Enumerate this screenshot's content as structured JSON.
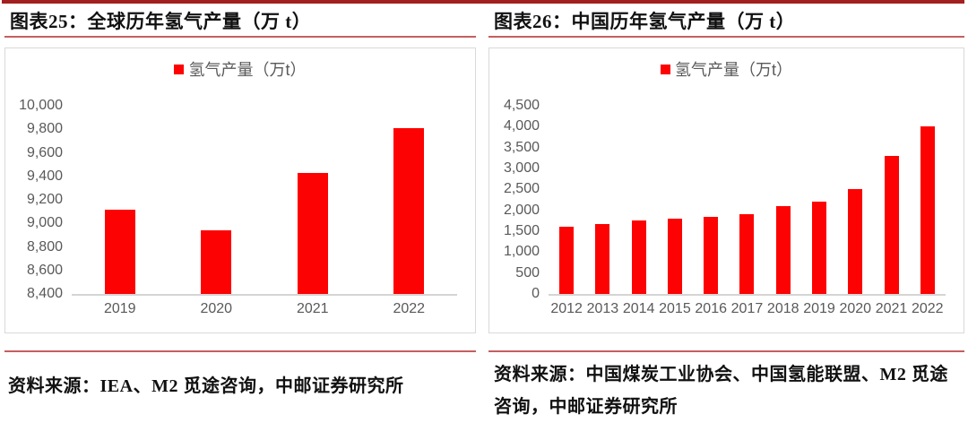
{
  "colors": {
    "bar_red": "#fd0202",
    "page_top_bar": "#a32020",
    "thin_red_line": "#c55f5f",
    "axis_text_gray": "#595959",
    "box_border_gray": "#d9d9d9"
  },
  "figures": [
    {
      "title": "图表25：全球历年氢气产量（万 t）",
      "legend": "氢气产量（万t）",
      "source": "资料来源：IEA、M2 觅途咨询，中邮证券研究所"
    },
    {
      "title": "图表26：中国历年氢气产量（万 t）",
      "legend": "氢气产量（万t）",
      "source": "资料来源：中国煤炭工业协会、中国氢能联盟、M2 觅途咨询，中邮证券研究所"
    }
  ],
  "chart_data": [
    {
      "type": "bar",
      "title": "图表25：全球历年氢气产量（万 t）",
      "series_name": "氢气产量（万t）",
      "categories": [
        "2019",
        "2020",
        "2021",
        "2022"
      ],
      "values": [
        9120,
        8940,
        9430,
        9810
      ],
      "xlabel": "",
      "ylabel": "",
      "ylim": [
        8400,
        10000
      ],
      "ytick_step": 200,
      "ytick_labels": [
        "8,400",
        "8,600",
        "8,800",
        "9,000",
        "9,200",
        "9,400",
        "9,600",
        "9,800",
        "10,000"
      ],
      "bar_color": "#fd0202",
      "grid": false,
      "legend_position": "top-center"
    },
    {
      "type": "bar",
      "title": "图表26：中国历年氢气产量（万 t）",
      "series_name": "氢气产量（万t）",
      "categories": [
        "2012",
        "2013",
        "2014",
        "2015",
        "2016",
        "2017",
        "2018",
        "2019",
        "2020",
        "2021",
        "2022"
      ],
      "values": [
        1600,
        1680,
        1750,
        1800,
        1850,
        1915,
        2100,
        2200,
        2500,
        3300,
        4000
      ],
      "xlabel": "",
      "ylabel": "",
      "ylim": [
        0,
        4500
      ],
      "ytick_step": 500,
      "ytick_labels": [
        "0",
        "500",
        "1,000",
        "1,500",
        "2,000",
        "2,500",
        "3,000",
        "3,500",
        "4,000",
        "4,500"
      ],
      "bar_color": "#fd0202",
      "grid": false,
      "legend_position": "top-center"
    }
  ]
}
